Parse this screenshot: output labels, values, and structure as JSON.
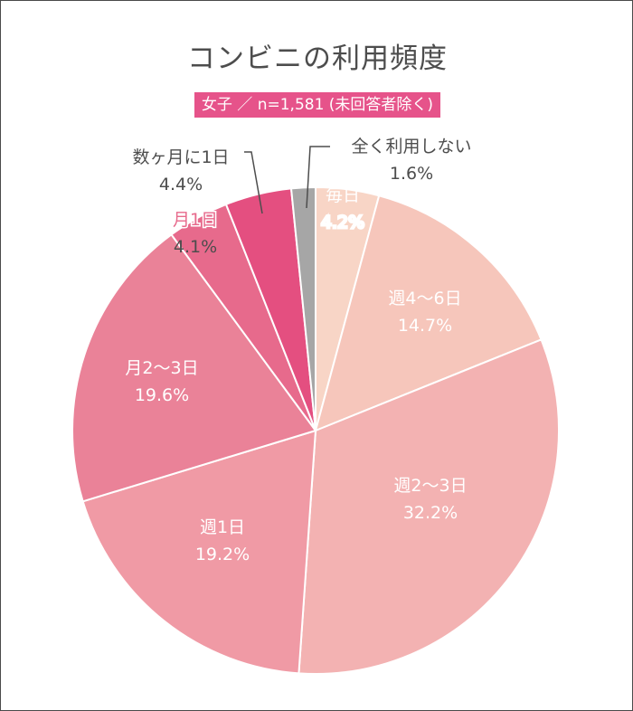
{
  "chart_data": {
    "type": "pie",
    "title": "コンビニの利用頻度",
    "subtitle": "女子 ／ n=1,581 (未回答者除く)",
    "start_angle_deg": 0,
    "direction": "clockwise",
    "slices": [
      {
        "label": "毎日",
        "value": 4.2,
        "value_text": "4.2%",
        "color": "#f8d5c6"
      },
      {
        "label": "週4～6日",
        "value": 14.7,
        "value_text": "14.7%",
        "color": "#f6c6bb"
      },
      {
        "label": "週2～3日",
        "value": 32.2,
        "value_text": "32.2%",
        "color": "#f3b2b2"
      },
      {
        "label": "週1日",
        "value": 19.2,
        "value_text": "19.2%",
        "color": "#f09aa5"
      },
      {
        "label": "月2～3日",
        "value": 19.6,
        "value_text": "19.6%",
        "color": "#ea8298"
      },
      {
        "label": "月1日",
        "value": 4.1,
        "value_text": "4.1%",
        "color": "#e76a8c"
      },
      {
        "label": "数ヶ月に1日",
        "value": 4.4,
        "value_text": "4.4%",
        "color": "#e44f80"
      },
      {
        "label": "全く利用しない",
        "value": 1.6,
        "value_text": "1.6%",
        "color": "#a6a6a6"
      }
    ]
  },
  "colors": {
    "title_text": "#4d4d4d",
    "subtitle_bg": "#e6538a",
    "inside_label_text": "#ffffff",
    "outside_label_text": "#4d4d4d",
    "frame_border": "#4a4a4a"
  }
}
